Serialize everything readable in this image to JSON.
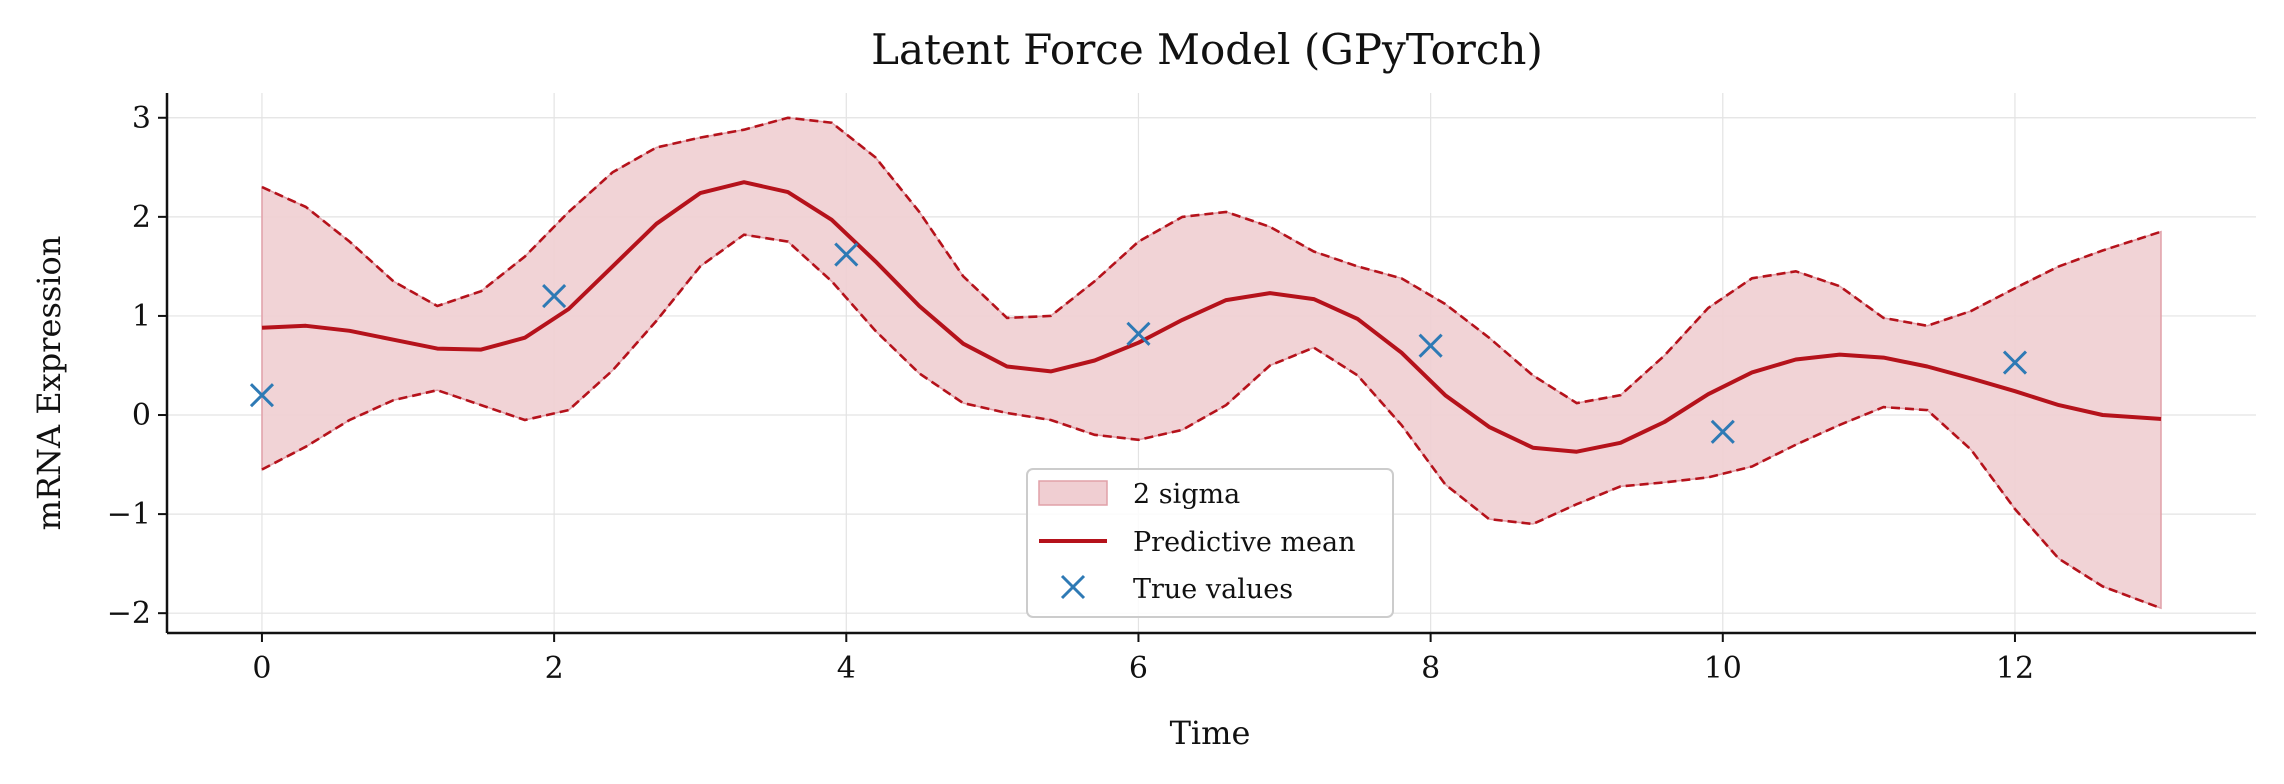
{
  "chart_data": {
    "type": "line",
    "title": "Latent Force Model (GPyTorch)",
    "xlabel": "Time",
    "ylabel": "mRNA Expression",
    "xlim": [
      -0.65,
      13.65
    ],
    "ylim": [
      -2.2,
      3.25
    ],
    "xticks": [
      0,
      2,
      4,
      6,
      8,
      10,
      12
    ],
    "yticks": [
      -2,
      -1,
      0,
      1,
      2,
      3
    ],
    "grid": true,
    "legend_position": "bottom-center",
    "colors": {
      "band": "#f0ced2",
      "band_edge": "#e1a0a8",
      "mean": "#b5121b",
      "markers": "#2e7ab5"
    },
    "series": [
      {
        "name": "2 sigma",
        "kind": "band",
        "x": [
          0,
          0.3,
          0.6,
          0.9,
          1.2,
          1.5,
          1.8,
          2.1,
          2.4,
          2.7,
          3.0,
          3.3,
          3.6,
          3.9,
          4.2,
          4.5,
          4.8,
          5.1,
          5.4,
          5.7,
          6.0,
          6.3,
          6.6,
          6.9,
          7.2,
          7.5,
          7.8,
          8.1,
          8.4,
          8.7,
          9.0,
          9.3,
          9.6,
          9.9,
          10.2,
          10.5,
          10.8,
          11.1,
          11.4,
          11.7,
          12.0,
          12.3,
          12.6,
          13.0
        ],
        "upper": [
          2.3,
          2.1,
          1.75,
          1.35,
          1.1,
          1.25,
          1.6,
          2.05,
          2.45,
          2.7,
          2.8,
          2.88,
          3.0,
          2.95,
          2.6,
          2.05,
          1.4,
          0.98,
          1.0,
          1.35,
          1.75,
          2.0,
          2.05,
          1.9,
          1.65,
          1.5,
          1.38,
          1.12,
          0.78,
          0.4,
          0.12,
          0.2,
          0.6,
          1.08,
          1.38,
          1.45,
          1.3,
          0.98,
          0.9,
          1.05,
          1.28,
          1.5,
          1.66,
          1.85
        ],
        "lower": [
          -0.55,
          -0.32,
          -0.05,
          0.15,
          0.25,
          0.1,
          -0.05,
          0.05,
          0.45,
          0.95,
          1.5,
          1.82,
          1.75,
          1.35,
          0.85,
          0.42,
          0.12,
          0.02,
          -0.05,
          -0.2,
          -0.25,
          -0.15,
          0.1,
          0.5,
          0.68,
          0.4,
          -0.1,
          -0.7,
          -1.05,
          -1.1,
          -0.9,
          -0.72,
          -0.68,
          -0.63,
          -0.52,
          -0.3,
          -0.1,
          0.08,
          0.05,
          -0.35,
          -0.95,
          -1.45,
          -1.73,
          -1.95
        ]
      },
      {
        "name": "Predictive mean",
        "kind": "line",
        "x": [
          0,
          0.3,
          0.6,
          0.9,
          1.2,
          1.5,
          1.8,
          2.1,
          2.4,
          2.7,
          3.0,
          3.3,
          3.6,
          3.9,
          4.2,
          4.5,
          4.8,
          5.1,
          5.4,
          5.7,
          6.0,
          6.3,
          6.6,
          6.9,
          7.2,
          7.5,
          7.8,
          8.1,
          8.4,
          8.7,
          9.0,
          9.3,
          9.6,
          9.9,
          10.2,
          10.5,
          10.8,
          11.1,
          11.4,
          11.7,
          12.0,
          12.3,
          12.6,
          13.0
        ],
        "y": [
          0.88,
          0.9,
          0.85,
          0.76,
          0.67,
          0.66,
          0.78,
          1.07,
          1.5,
          1.93,
          2.24,
          2.35,
          2.25,
          1.97,
          1.55,
          1.1,
          0.72,
          0.49,
          0.44,
          0.55,
          0.73,
          0.96,
          1.16,
          1.23,
          1.17,
          0.97,
          0.63,
          0.2,
          -0.12,
          -0.33,
          -0.37,
          -0.28,
          -0.07,
          0.21,
          0.43,
          0.56,
          0.61,
          0.58,
          0.49,
          0.37,
          0.24,
          0.1,
          0.0,
          -0.04
        ]
      },
      {
        "name": "True values",
        "kind": "scatter",
        "marker": "x",
        "x": [
          0,
          2,
          4,
          6,
          8,
          10,
          12
        ],
        "y": [
          0.2,
          1.2,
          1.62,
          0.82,
          0.7,
          -0.17,
          0.53
        ]
      }
    ]
  }
}
